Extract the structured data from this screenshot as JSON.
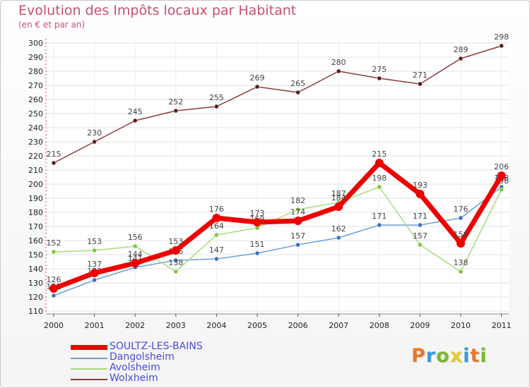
{
  "header": {
    "title": "Evolution des Impôts locaux par Habitant",
    "subtitle": "(en € et par an)"
  },
  "logo": {
    "text": "Proxiti",
    "colors": [
      "#e8782a",
      "#3a9ad8",
      "#7ab82a",
      "#e8c82a",
      "#3a9ad8",
      "#e8782a",
      "#7ab82a"
    ]
  },
  "chart_data": {
    "type": "line",
    "title": "Evolution des Impôts locaux par Habitant",
    "subtitle": "(en € et par an)",
    "xlabel": "",
    "ylabel": "",
    "x": [
      "2000",
      "2001",
      "2002",
      "2003",
      "2004",
      "2005",
      "2006",
      "2007",
      "2008",
      "2009",
      "2010",
      "2011"
    ],
    "ylim": [
      110,
      300
    ],
    "yticks": [
      110,
      120,
      130,
      140,
      150,
      160,
      170,
      180,
      190,
      200,
      210,
      220,
      230,
      240,
      250,
      260,
      270,
      280,
      290,
      300
    ],
    "grid": true,
    "legend_position": "bottom-left",
    "series": [
      {
        "name": "Wolxheim",
        "color": "#8b3a3a",
        "marker": "#5a1a1a",
        "values": [
          215,
          230,
          245,
          252,
          255,
          269,
          265,
          280,
          275,
          271,
          289,
          298
        ],
        "labels": [
          "215",
          "230",
          "245",
          "252",
          "255",
          "269",
          "265",
          "280",
          "275",
          "271",
          "289",
          "298"
        ]
      },
      {
        "name": "Dangolsheim",
        "color": "#6fa0d8",
        "marker": "#3a6fb8",
        "values": [
          121,
          132,
          141,
          146,
          147,
          151,
          157,
          162,
          171,
          171,
          176,
          198
        ],
        "labels": [
          "121",
          "132",
          "141",
          "146",
          "147",
          "151",
          "157",
          "162",
          "171",
          "171",
          "176",
          "198"
        ]
      },
      {
        "name": "Avolsheim",
        "color": "#a8dc7a",
        "marker": "#7ac83a",
        "values": [
          152,
          153,
          156,
          138,
          164,
          169,
          182,
          187,
          198,
          157,
          138,
          196
        ],
        "labels": [
          "152",
          "153",
          "156",
          "138",
          "164",
          "169",
          "182",
          "187",
          "198",
          "157",
          "138",
          "196"
        ]
      },
      {
        "name": "SOULTZ-LES-BAINS",
        "color": "#ee0000",
        "marker": "#ee0000",
        "values": [
          126,
          137,
          144,
          153,
          176,
          173,
          174,
          184,
          215,
          193,
          158,
          206
        ],
        "labels": [
          "126",
          "137",
          "144",
          "153",
          "176",
          "173",
          "174",
          "184",
          "215",
          "193",
          "158",
          "206"
        ]
      }
    ],
    "legend": [
      "SOULTZ-LES-BAINS",
      "Dangolsheim",
      "Avolsheim",
      "Wolxheim"
    ]
  }
}
